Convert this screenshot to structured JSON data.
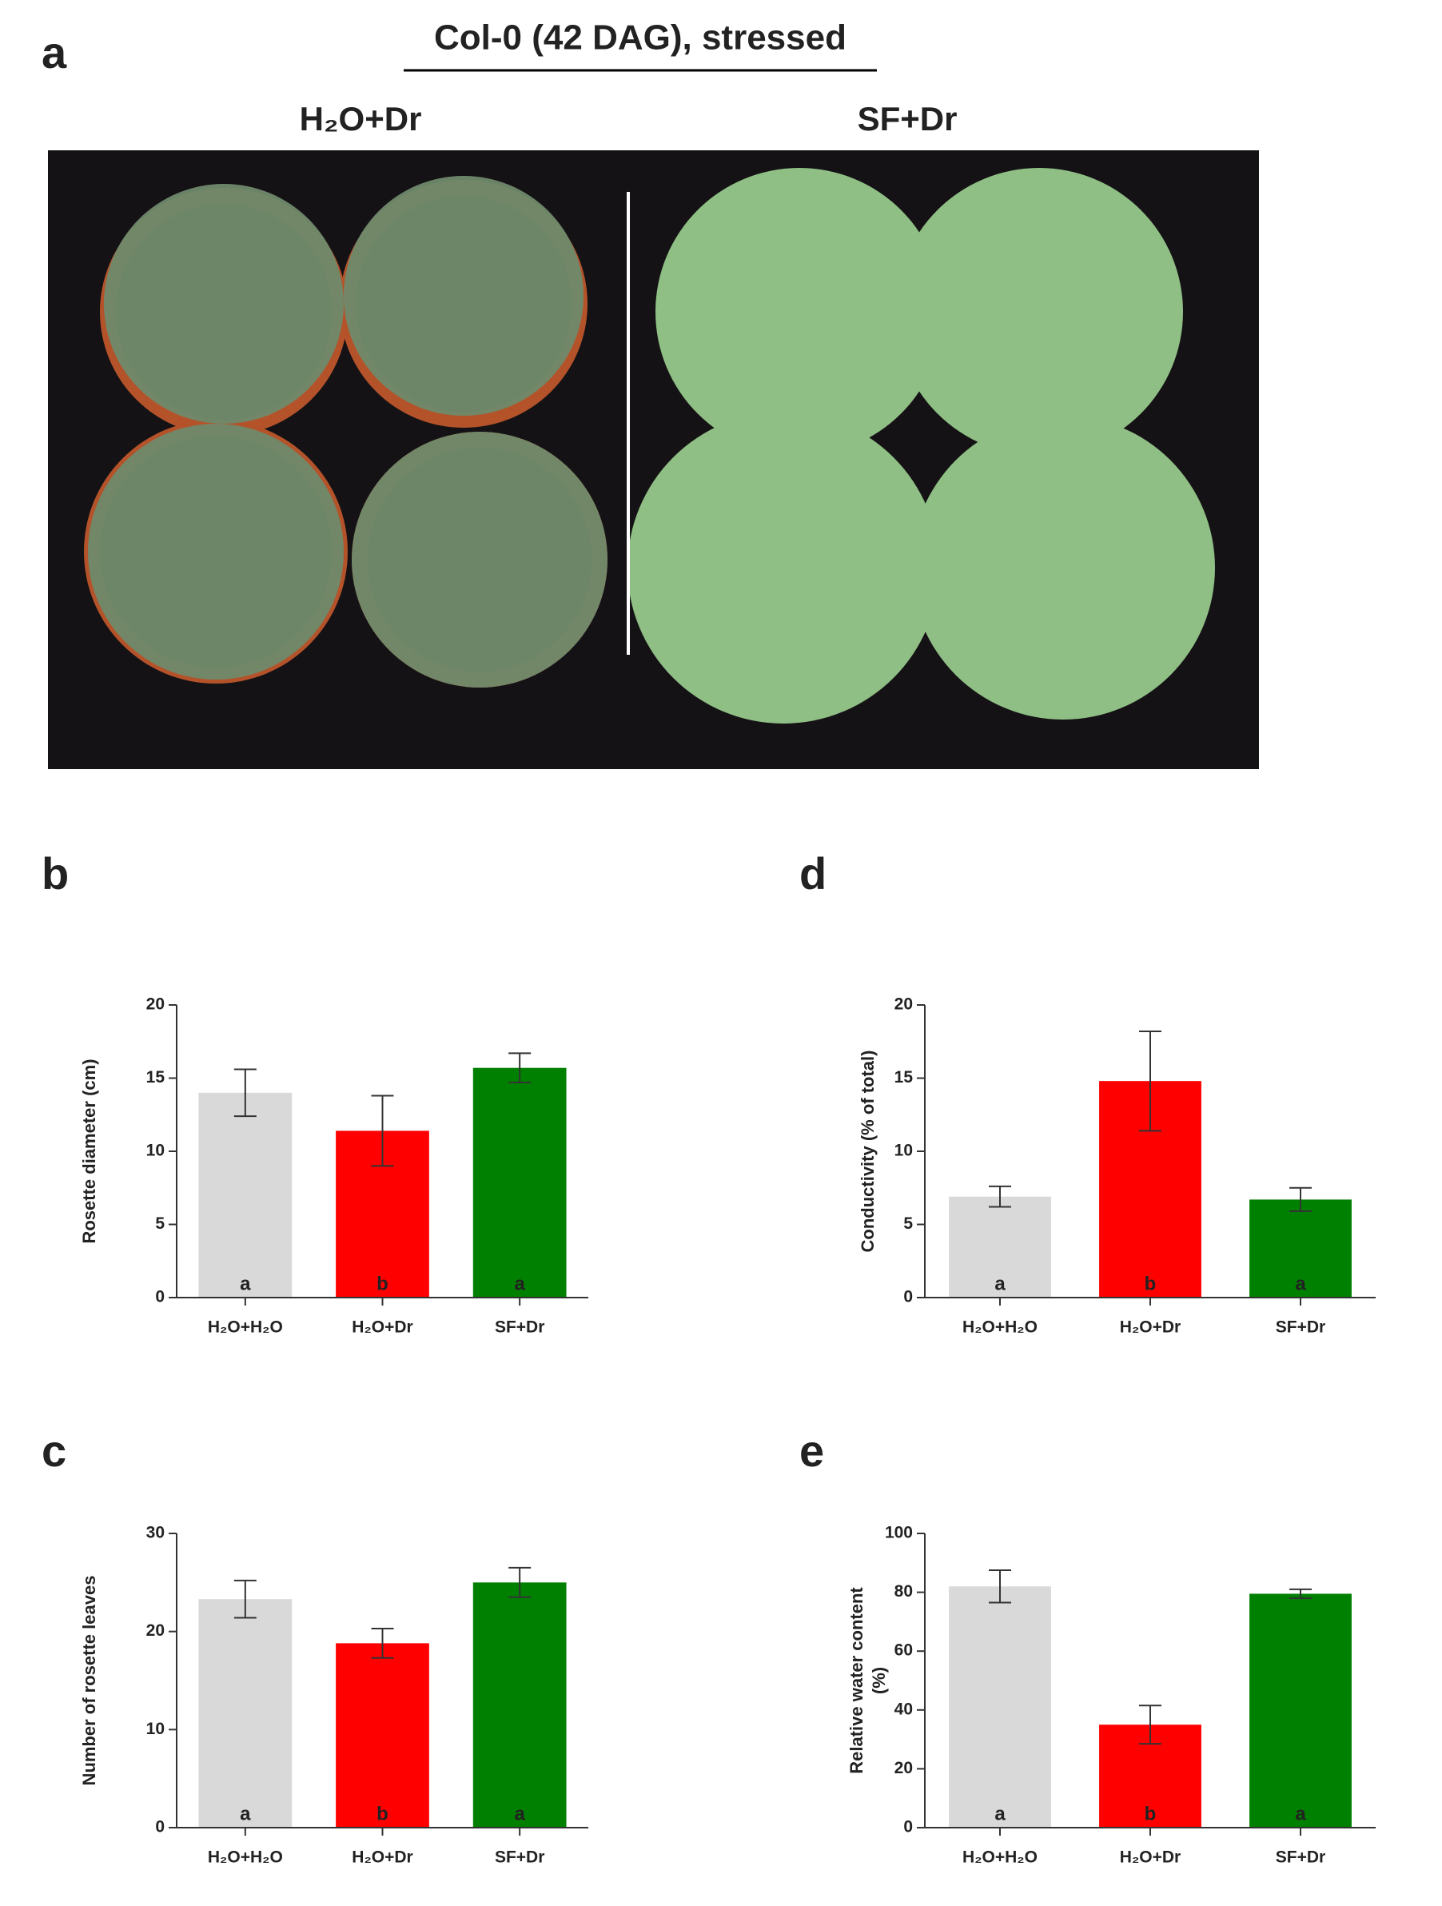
{
  "figure": {
    "panel_a": {
      "label": "a",
      "title": "Col-0 (42 DAG), stressed",
      "groups": [
        "H₂O+Dr",
        "SF+Dr"
      ]
    }
  },
  "chart_data": [
    {
      "type": "bar",
      "panel": "b",
      "y_label": "Rosette diameter (cm)",
      "categories": [
        "H₂O+H₂O",
        "H₂O+Dr",
        "SF+Dr"
      ],
      "values": [
        14.0,
        11.4,
        15.7
      ],
      "errors": [
        1.6,
        2.4,
        1.0
      ],
      "annotations": [
        "a",
        "b",
        "a"
      ],
      "colors": [
        "#d9d9d9",
        "#ff0000",
        "#008000"
      ],
      "ylim": [
        0,
        20
      ],
      "yticks": [
        0,
        5,
        10,
        15,
        20
      ]
    },
    {
      "type": "bar",
      "panel": "d",
      "y_label": "Conductivity (% of total)",
      "categories": [
        "H₂O+H₂O",
        "H₂O+Dr",
        "SF+Dr"
      ],
      "values": [
        6.9,
        14.8,
        6.7
      ],
      "errors": [
        0.7,
        3.4,
        0.8
      ],
      "annotations": [
        "a",
        "b",
        "a"
      ],
      "colors": [
        "#d9d9d9",
        "#ff0000",
        "#008000"
      ],
      "ylim": [
        0,
        20
      ],
      "yticks": [
        0,
        5,
        10,
        15,
        20
      ]
    },
    {
      "type": "bar",
      "panel": "c",
      "y_label": "Number of rosette leaves",
      "categories": [
        "H₂O+H₂O",
        "H₂O+Dr",
        "SF+Dr"
      ],
      "values": [
        23.3,
        18.8,
        25.0
      ],
      "errors": [
        1.9,
        1.5,
        1.5
      ],
      "annotations": [
        "a",
        "b",
        "a"
      ],
      "colors": [
        "#d9d9d9",
        "#ff0000",
        "#008000"
      ],
      "ylim": [
        0,
        30
      ],
      "yticks": [
        0,
        10,
        20,
        30
      ]
    },
    {
      "type": "bar",
      "panel": "e",
      "y_label": [
        "Relative water content",
        "(%)"
      ],
      "categories": [
        "H₂O+H₂O",
        "H₂O+Dr",
        "SF+Dr"
      ],
      "values": [
        82,
        35,
        79.5
      ],
      "errors": [
        5.5,
        6.5,
        1.5
      ],
      "annotations": [
        "a",
        "b",
        "a"
      ],
      "colors": [
        "#d9d9d9",
        "#ff0000",
        "#008000"
      ],
      "ylim": [
        0,
        100
      ],
      "yticks": [
        0,
        20,
        40,
        60,
        80,
        100
      ]
    }
  ]
}
